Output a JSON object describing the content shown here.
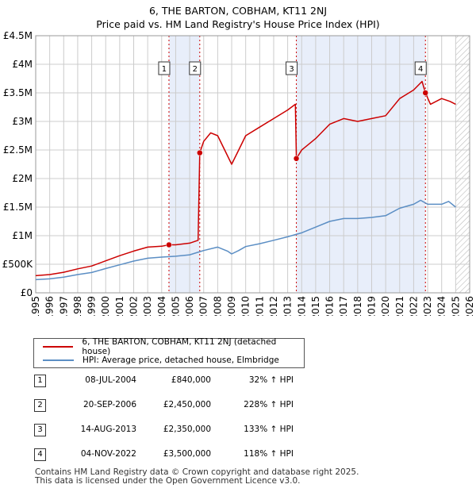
{
  "title": {
    "line1": "6, THE BARTON, COBHAM, KT11 2NJ",
    "line2": "Price paid vs. HM Land Registry's House Price Index (HPI)"
  },
  "colors": {
    "property": "#cc0000",
    "hpi": "#5b8ec4",
    "shade": "#e8eefa",
    "grid": "#cccccc",
    "marker_line": "#cc0000"
  },
  "legend": {
    "property_label": "6, THE BARTON, COBHAM, KT11 2NJ (detached house)",
    "hpi_label": "HPI: Average price, detached house, Elmbridge"
  },
  "transactions": [
    {
      "num": "1",
      "date": "08-JUL-2004",
      "price": "£840,000",
      "hpi_change": "32% ↑ HPI"
    },
    {
      "num": "2",
      "date": "20-SEP-2006",
      "price": "£2,450,000",
      "hpi_change": "228% ↑ HPI"
    },
    {
      "num": "3",
      "date": "14-AUG-2013",
      "price": "£2,350,000",
      "hpi_change": "133% ↑ HPI"
    },
    {
      "num": "4",
      "date": "04-NOV-2022",
      "price": "£3,500,000",
      "hpi_change": "118% ↑ HPI"
    }
  ],
  "footer": {
    "line1": "Contains HM Land Registry data © Crown copyright and database right 2025.",
    "line2": "This data is licensed under the Open Government Licence v3.0."
  },
  "chart_data": {
    "type": "line",
    "title": "6, THE BARTON, COBHAM, KT11 2NJ — Price paid vs. HM Land Registry's House Price Index (HPI)",
    "xlabel": "",
    "ylabel": "",
    "xlim": [
      1995,
      2026
    ],
    "ylim": [
      0,
      4500000
    ],
    "x_ticks": [
      1995,
      1996,
      1997,
      1998,
      1999,
      2000,
      2001,
      2002,
      2003,
      2004,
      2005,
      2006,
      2007,
      2008,
      2009,
      2010,
      2011,
      2012,
      2013,
      2014,
      2015,
      2016,
      2017,
      2018,
      2019,
      2020,
      2021,
      2022,
      2023,
      2024,
      2025,
      2026
    ],
    "y_ticks": [
      {
        "value": 0,
        "label": "£0"
      },
      {
        "value": 500000,
        "label": "£500K"
      },
      {
        "value": 1000000,
        "label": "£1M"
      },
      {
        "value": 1500000,
        "label": "£1.5M"
      },
      {
        "value": 2000000,
        "label": "£2M"
      },
      {
        "value": 2500000,
        "label": "£2.5M"
      },
      {
        "value": 3000000,
        "label": "£3M"
      },
      {
        "value": 3500000,
        "label": "£3.5M"
      },
      {
        "value": 4000000,
        "label": "£4M"
      },
      {
        "value": 4500000,
        "label": "£4.5M"
      }
    ],
    "grid": true,
    "shaded_ranges": [
      [
        2004.52,
        2006.72
      ],
      [
        2013.62,
        2022.84
      ]
    ],
    "future_hatch_from": 2025.0,
    "sales": [
      {
        "label": "1",
        "x": 2004.52,
        "value": 840000
      },
      {
        "label": "2",
        "x": 2006.72,
        "value": 2450000
      },
      {
        "label": "3",
        "x": 2013.62,
        "value": 2350000
      },
      {
        "label": "4",
        "x": 2022.84,
        "value": 3500000
      }
    ],
    "series": [
      {
        "name": "6, THE BARTON, COBHAM, KT11 2NJ (detached house)",
        "color": "#cc0000",
        "points": [
          [
            1995,
            300000
          ],
          [
            1996,
            320000
          ],
          [
            1997,
            360000
          ],
          [
            1998,
            420000
          ],
          [
            1999,
            470000
          ],
          [
            2000,
            560000
          ],
          [
            2001,
            650000
          ],
          [
            2002,
            730000
          ],
          [
            2003,
            800000
          ],
          [
            2004,
            815000
          ],
          [
            2004.52,
            840000
          ],
          [
            2005,
            840000
          ],
          [
            2006,
            870000
          ],
          [
            2006.6,
            920000
          ],
          [
            2006.72,
            2450000
          ],
          [
            2007,
            2650000
          ],
          [
            2007.5,
            2800000
          ],
          [
            2008,
            2750000
          ],
          [
            2008.5,
            2500000
          ],
          [
            2009,
            2250000
          ],
          [
            2009.5,
            2500000
          ],
          [
            2010,
            2750000
          ],
          [
            2011,
            2900000
          ],
          [
            2012,
            3050000
          ],
          [
            2013,
            3200000
          ],
          [
            2013.55,
            3300000
          ],
          [
            2013.62,
            2350000
          ],
          [
            2014,
            2500000
          ],
          [
            2015,
            2700000
          ],
          [
            2016,
            2950000
          ],
          [
            2017,
            3050000
          ],
          [
            2018,
            3000000
          ],
          [
            2019,
            3050000
          ],
          [
            2020,
            3100000
          ],
          [
            2021,
            3400000
          ],
          [
            2022,
            3550000
          ],
          [
            2022.6,
            3700000
          ],
          [
            2022.84,
            3500000
          ],
          [
            2023.2,
            3300000
          ],
          [
            2024,
            3400000
          ],
          [
            2024.6,
            3350000
          ],
          [
            2025,
            3300000
          ]
        ]
      },
      {
        "name": "HPI: Average price, detached house, Elmbridge",
        "color": "#5b8ec4",
        "points": [
          [
            1995,
            230000
          ],
          [
            1996,
            245000
          ],
          [
            1997,
            275000
          ],
          [
            1998,
            320000
          ],
          [
            1999,
            355000
          ],
          [
            2000,
            425000
          ],
          [
            2001,
            490000
          ],
          [
            2002,
            555000
          ],
          [
            2003,
            605000
          ],
          [
            2004,
            625000
          ],
          [
            2005,
            640000
          ],
          [
            2006,
            665000
          ],
          [
            2007,
            740000
          ],
          [
            2008,
            800000
          ],
          [
            2008.7,
            730000
          ],
          [
            2009,
            680000
          ],
          [
            2009.5,
            740000
          ],
          [
            2010,
            810000
          ],
          [
            2011,
            860000
          ],
          [
            2012,
            920000
          ],
          [
            2013,
            980000
          ],
          [
            2014,
            1050000
          ],
          [
            2015,
            1150000
          ],
          [
            2016,
            1250000
          ],
          [
            2017,
            1300000
          ],
          [
            2018,
            1300000
          ],
          [
            2019,
            1320000
          ],
          [
            2020,
            1350000
          ],
          [
            2021,
            1480000
          ],
          [
            2022,
            1550000
          ],
          [
            2022.5,
            1620000
          ],
          [
            2023,
            1550000
          ],
          [
            2024,
            1550000
          ],
          [
            2024.5,
            1600000
          ],
          [
            2025,
            1500000
          ]
        ]
      }
    ]
  }
}
